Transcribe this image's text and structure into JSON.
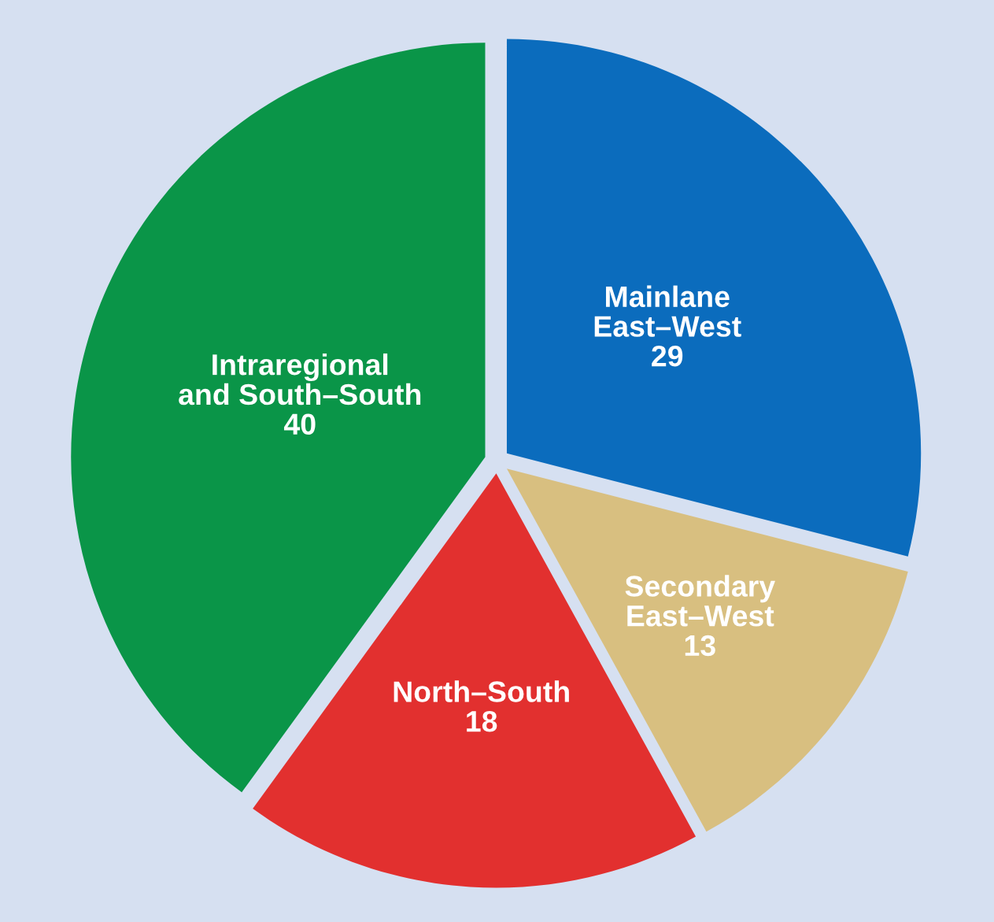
{
  "chart_data": {
    "type": "pie",
    "categories": [
      "Mainlane\nEast–West",
      "Secondary\nEast–West",
      "North–South",
      "Intraregional\nand South–South"
    ],
    "values": [
      29,
      13,
      18,
      40
    ],
    "colors": [
      "#0b6cbd",
      "#d8bf80",
      "#e2302f",
      "#0a9548"
    ],
    "data_labels": true
  }
}
